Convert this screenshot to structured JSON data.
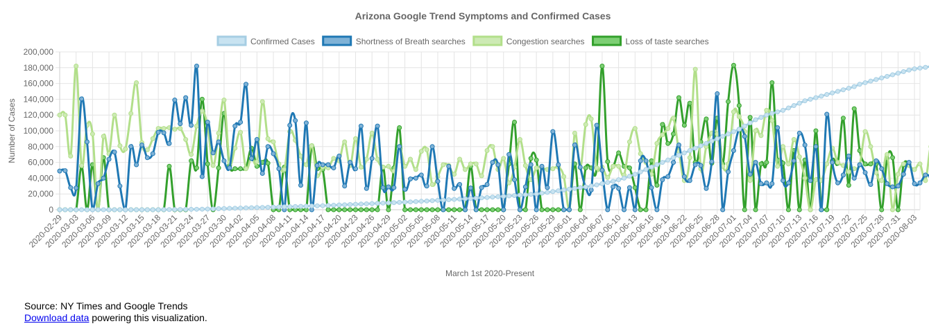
{
  "chart_data": {
    "type": "line",
    "title": "Arizona Google Trend Symptoms and Confirmed Cases",
    "xlabel": "March 1st 2020-Present",
    "ylabel": "Number of Cases",
    "ylim": [
      0,
      200000
    ],
    "y_ticks": [
      "0",
      "20,000",
      "40,000",
      "60,000",
      "80,000",
      "100,000",
      "120,000",
      "140,000",
      "160,000",
      "180,000",
      "200,000"
    ],
    "x_tick_labels": [
      "2020-02-29",
      "2020-03-03",
      "2020-03-06",
      "2020-03-09",
      "2020-03-12",
      "2020-03-15",
      "2020-03-18",
      "2020-03-21",
      "2020-03-24",
      "2020-03-27",
      "2020-03-30",
      "2020-04-02",
      "2020-04-05",
      "2020-04-08",
      "2020-04-11",
      "2020-04-14",
      "2020-04-17",
      "2020-04-20",
      "2020-04-23",
      "2020-04-26",
      "2020-04-29",
      "2020-05-02",
      "2020-05-05",
      "2020-05-08",
      "2020-05-11",
      "2020-05-14",
      "2020-05-17",
      "2020-05-20",
      "2020-05-23",
      "2020-05-26",
      "2020-05-29",
      "2020-06-01",
      "2020-06-04",
      "2020-06-07",
      "2020-06-10",
      "2020-06-13",
      "2020-06-16",
      "2020-06-19",
      "2020-06-22",
      "2020-06-25",
      "2020-06-28",
      "2020-07-01",
      "2020-07-04",
      "2020-07-07",
      "2020-07-10",
      "2020-07-13",
      "2020-07-16",
      "2020-07-19",
      "2020-07-22",
      "2020-07-25",
      "2020-07-28",
      "2020-07-31",
      "2020-08-03"
    ],
    "x_start": "2020-02-29",
    "x_end": "2020-08-04",
    "grid": true,
    "legend_position": "top",
    "series": [
      {
        "name": "Confirmed Cases",
        "color": "#a6cee3",
        "fill": "#c8e3f1",
        "values": [
          0,
          0,
          0,
          0,
          0,
          0,
          0,
          0,
          0,
          0,
          0,
          0,
          0,
          0,
          0,
          0,
          0,
          0,
          0,
          100,
          200,
          250,
          300,
          400,
          500,
          600,
          700,
          900,
          1100,
          1300,
          1500,
          1700,
          1900,
          2100,
          2300,
          2500,
          2700,
          2900,
          3100,
          3300,
          3500,
          3700,
          3900,
          4100,
          4300,
          4500,
          4700,
          4900,
          5100,
          5400,
          5700,
          6000,
          6300,
          6600,
          6900,
          7200,
          7500,
          7800,
          8100,
          8400,
          8700,
          9000,
          9300,
          9600,
          9900,
          10300,
          10700,
          11100,
          11500,
          11900,
          12300,
          12700,
          13100,
          13500,
          13900,
          14300,
          14700,
          15100,
          15500,
          16000,
          16500,
          17000,
          17500,
          18000,
          18500,
          19000,
          19500,
          20000,
          21000,
          22000,
          23000,
          24000,
          25000,
          26000,
          27000,
          28000,
          29000,
          30000,
          31500,
          33000,
          34500,
          36000,
          38000,
          40000,
          42500,
          45000,
          48000,
          51000,
          54000,
          57000,
          60000,
          63000,
          66000,
          69000,
          72000,
          75000,
          78000,
          81000,
          84000,
          87000,
          90000,
          93000,
          96000,
          99000,
          102000,
          106000,
          110000,
          114000,
          117000,
          120000,
          122000,
          124000,
          126000,
          129000,
          132000,
          135000,
          138000,
          140000,
          142000,
          144000,
          146000,
          148000,
          150000,
          152000,
          154000,
          156000,
          159000,
          161000,
          163000,
          165000,
          167000,
          169000,
          171000,
          173000,
          175000,
          177000,
          178500,
          179500,
          180500,
          181500,
          182500
        ]
      },
      {
        "name": "Shortness of Breath searches",
        "color": "#1f78b4",
        "fill": "#7fb2d6",
        "values": [
          49000,
          49500,
          28000,
          27500,
          140500,
          86000,
          0,
          33000,
          40000,
          64000,
          73000,
          30000,
          0,
          80000,
          57000,
          82000,
          66000,
          71000,
          98000,
          97500,
          84000,
          139000,
          109000,
          142000,
          107000,
          182000,
          42000,
          111000,
          72000,
          86000,
          62000,
          53000,
          106000,
          111000,
          159000,
          65000,
          89000,
          46000,
          80000,
          71000,
          52000,
          0,
          107000,
          113000,
          31000,
          110000,
          0,
          56000,
          57000,
          57000,
          53000,
          68000,
          30000,
          60000,
          52000,
          106000,
          27000,
          65000,
          106000,
          28000,
          29000,
          28000,
          80000,
          26000,
          39000,
          40000,
          44000,
          30000,
          80000,
          36000,
          0,
          55000,
          27000,
          32000,
          0,
          27500,
          0,
          28000,
          32000,
          60000,
          57000,
          0,
          70000,
          38000,
          0,
          29000,
          57000,
          0,
          55000,
          28000,
          99000,
          57000,
          0,
          0,
          82000,
          54000,
          28000,
          25000,
          107000,
          50000,
          0,
          29000,
          27000,
          0,
          28000,
          0,
          62000,
          62000,
          28000,
          0,
          38000,
          42000,
          60000,
          82000,
          42000,
          37000,
          57000,
          56000,
          27000,
          61000,
          147000,
          0,
          48000,
          75000,
          102000,
          93000,
          45000,
          60000,
          33000,
          34000,
          33000,
          104000,
          37000,
          34000,
          62000,
          97000,
          82000,
          37000,
          80000,
          0,
          121000,
          60000,
          34000,
          44000,
          68000,
          40000,
          57000,
          47000,
          32000,
          62000,
          52000,
          33000,
          29000,
          30000,
          45000,
          60000,
          33000,
          34000,
          44000,
          42000,
          42000
        ]
      },
      {
        "name": "Congestion searches",
        "color": "#b2df8a",
        "fill": "#cdeab4",
        "values": [
          120000,
          120000,
          68000,
          182000,
          56000,
          107000,
          96000,
          0,
          93000,
          71000,
          120000,
          81000,
          77000,
          122000,
          161000,
          85000,
          76000,
          90000,
          103000,
          103000,
          104000,
          102000,
          103000,
          89000,
          70000,
          106000,
          125000,
          106000,
          56000,
          97000,
          139000,
          60000,
          78000,
          98000,
          52000,
          67000,
          61000,
          137000,
          90000,
          86000,
          58000,
          51000,
          99000,
          88000,
          68000,
          57000,
          81000,
          43000,
          54000,
          53000,
          65000,
          62000,
          86000,
          56000,
          90000,
          54000,
          64000,
          97000,
          64000,
          54000,
          55000,
          49000,
          80000,
          55000,
          64000,
          51000,
          74000,
          76000,
          32000,
          42000,
          57000,
          56000,
          45000,
          64000,
          51000,
          58000,
          58000,
          43000,
          75000,
          80000,
          51000,
          65000,
          34000,
          54000,
          89000,
          56000,
          38000,
          53000,
          53000,
          51000,
          52000,
          54000,
          42000,
          0,
          97000,
          53000,
          108000,
          115000,
          53000,
          54000,
          41000,
          55000,
          55000,
          44000,
          86000,
          103000,
          71000,
          60000,
          45000,
          84000,
          95000,
          103000,
          116000,
          74000,
          37000,
          66000,
          178000,
          52000,
          80000,
          97000,
          96000,
          55000,
          58000,
          124000,
          118000,
          99000,
          37000,
          100000,
          94000,
          126000,
          113000,
          55000,
          80000,
          58000,
          89000,
          67000,
          40000,
          0,
          38000,
          37000,
          58000,
          78000,
          60000,
          56000,
          48000,
          52000,
          57000,
          99000,
          80000,
          47000,
          37000,
          70000,
          0,
          45000,
          58000,
          56000,
          51000,
          58000,
          37000,
          80000,
          49000,
          52000,
          51000
        ]
      },
      {
        "name": "Loss of taste searches",
        "color": "#33a02c",
        "fill": "#7dcf74",
        "values": [
          0,
          0,
          0,
          0,
          55000,
          0,
          57000,
          0,
          66000,
          0,
          0,
          0,
          0,
          0,
          0,
          0,
          0,
          0,
          0,
          0,
          55000,
          0,
          0,
          0,
          62000,
          53000,
          140000,
          58000,
          0,
          53000,
          122000,
          56000,
          52000,
          52000,
          53000,
          78000,
          55000,
          60000,
          59000,
          0,
          0,
          54000,
          0,
          0,
          0,
          0,
          81000,
          52000,
          51000,
          0,
          0,
          0,
          0,
          0,
          0,
          0,
          0,
          0,
          0,
          54000,
          0,
          53000,
          104000,
          0,
          0,
          0,
          0,
          0,
          0,
          0,
          0,
          0,
          0,
          0,
          0,
          55000,
          0,
          0,
          0,
          0,
          0,
          0,
          58000,
          111000,
          0,
          0,
          65000,
          63000,
          0,
          0,
          0,
          0,
          0,
          0,
          58000,
          0,
          53000,
          53000,
          53000,
          182000,
          61000,
          55000,
          72000,
          55000,
          53000,
          28000,
          0,
          0,
          62000,
          31000,
          108000,
          84000,
          96000,
          142000,
          107000,
          135000,
          60000,
          86000,
          115000,
          59000,
          116000,
          58000,
          137000,
          183000,
          132000,
          0,
          117000,
          0,
          58000,
          60000,
          161000,
          63000,
          59000,
          0,
          75000,
          0,
          63000,
          0,
          100000,
          0,
          0,
          62000,
          59000,
          116000,
          31000,
          128000,
          75000,
          58000,
          58000,
          58000,
          0,
          65000,
          66000,
          0,
          57000,
          57000
        ]
      }
    ]
  },
  "source": {
    "line1": "Source: NY Times and Google Trends",
    "link_text": "Download data",
    "line2_rest": " powering this visualization."
  }
}
